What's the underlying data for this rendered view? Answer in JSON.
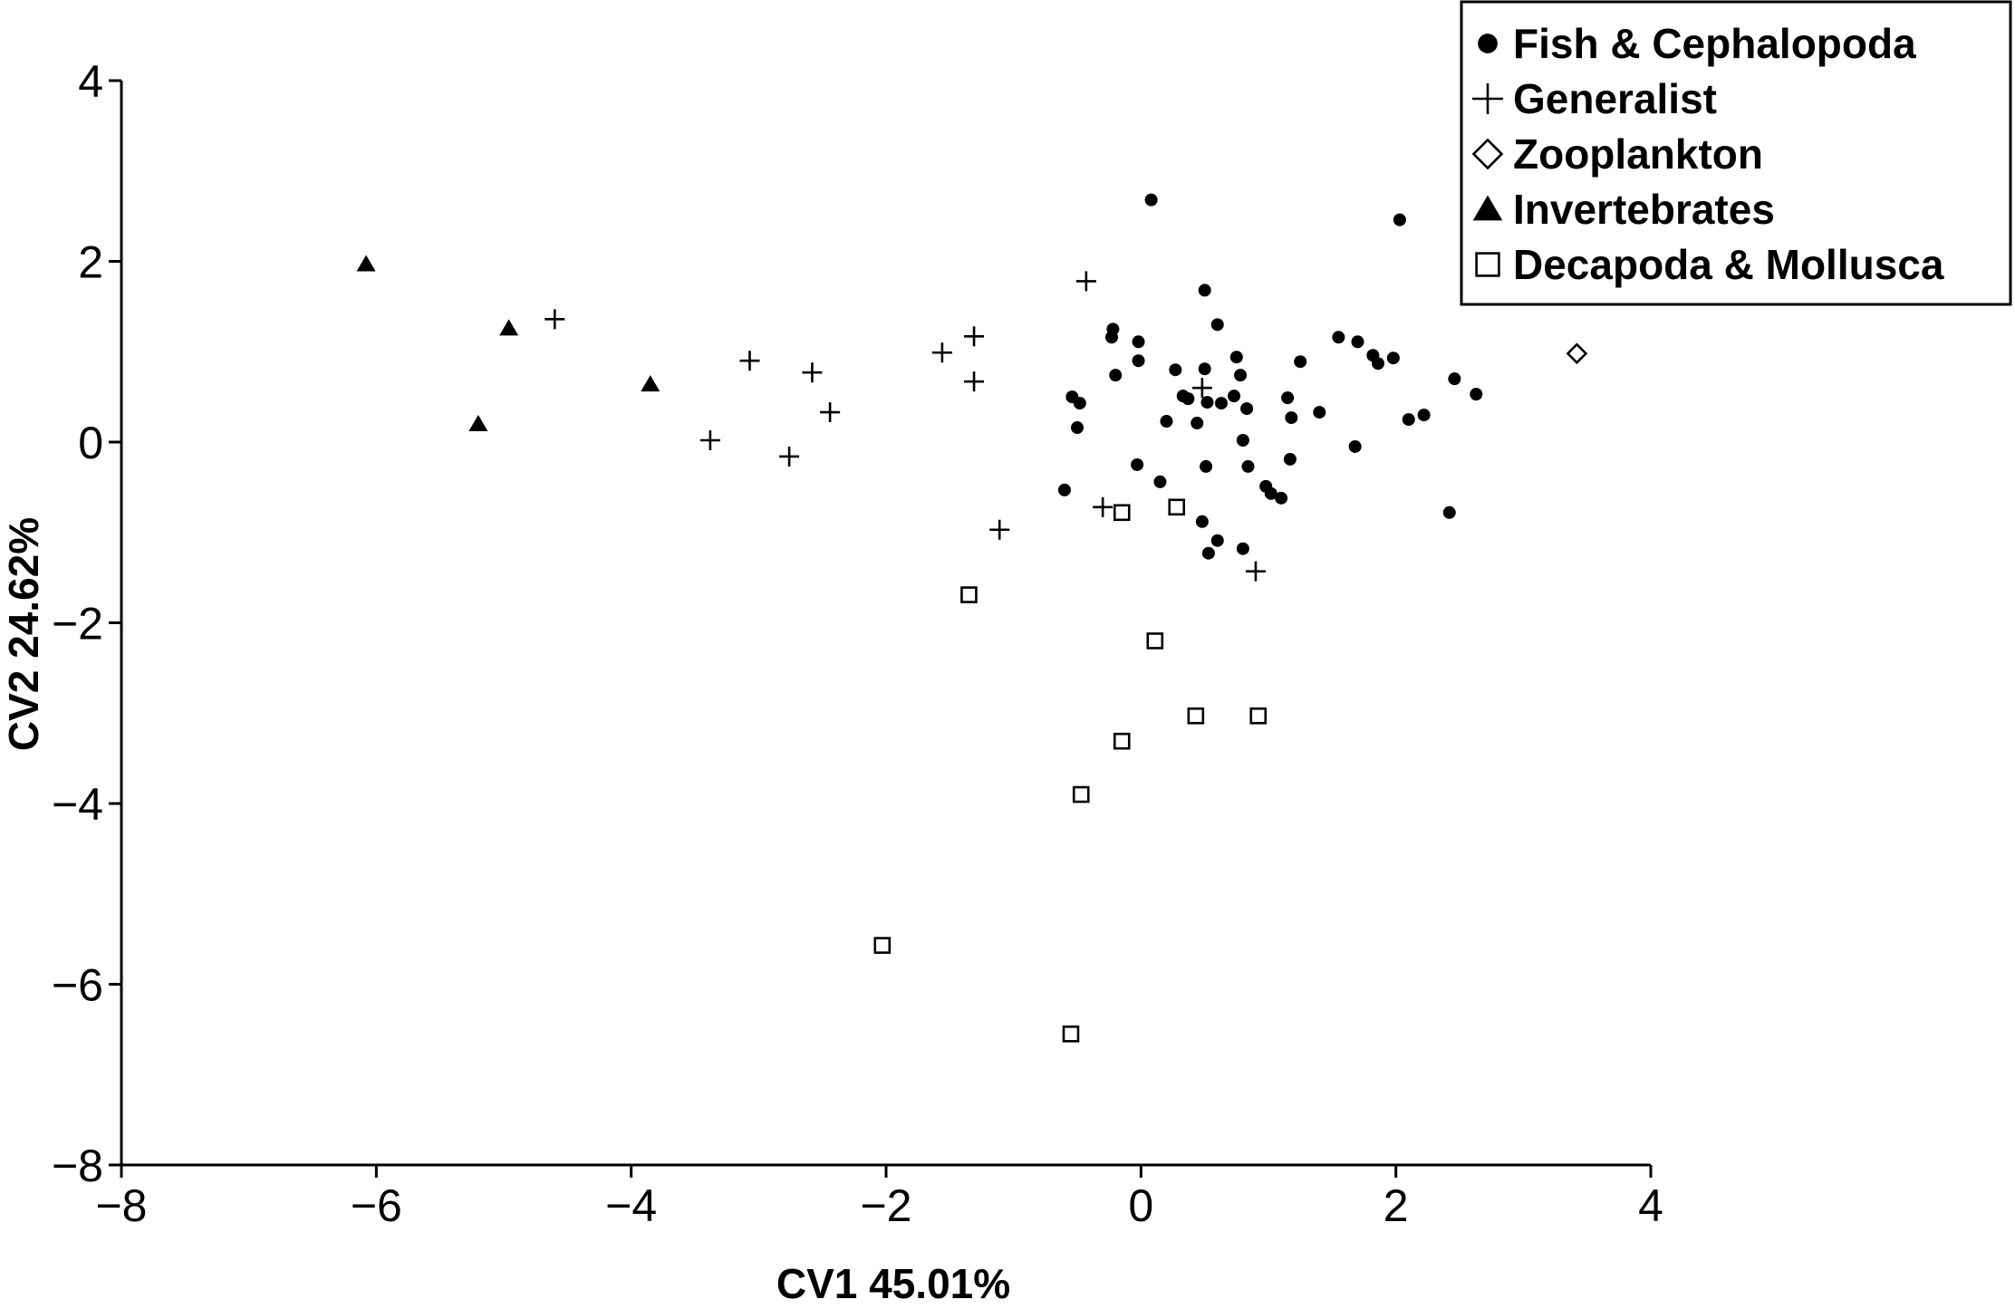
{
  "chart_data": {
    "type": "scatter",
    "title": "",
    "xlabel": "CV1 45.01%",
    "ylabel": "CV2 24.62%",
    "xlim": [
      -8,
      4
    ],
    "ylim": [
      -8,
      4
    ],
    "xticks": [
      -8,
      -6,
      -4,
      -2,
      0,
      2,
      4
    ],
    "yticks": [
      -8,
      -6,
      -4,
      -2,
      0,
      2,
      4
    ],
    "grid": false,
    "legend_position": "top-right",
    "series": [
      {
        "name": "Fish & Cephalopoda",
        "marker": "filled-circle",
        "points": [
          [
            0.08,
            2.68
          ],
          [
            2.03,
            2.46
          ],
          [
            0.5,
            1.68
          ],
          [
            0.6,
            1.3
          ],
          [
            -0.22,
            1.25
          ],
          [
            -0.23,
            1.16
          ],
          [
            -0.02,
            1.11
          ],
          [
            1.55,
            1.16
          ],
          [
            1.7,
            1.11
          ],
          [
            1.82,
            0.96
          ],
          [
            1.98,
            0.93
          ],
          [
            1.86,
            0.87
          ],
          [
            0.75,
            0.94
          ],
          [
            1.25,
            0.89
          ],
          [
            -0.02,
            0.9
          ],
          [
            0.27,
            0.8
          ],
          [
            0.5,
            0.81
          ],
          [
            0.78,
            0.74
          ],
          [
            -0.2,
            0.74
          ],
          [
            2.46,
            0.7
          ],
          [
            0.33,
            0.51
          ],
          [
            0.37,
            0.48
          ],
          [
            0.52,
            0.44
          ],
          [
            0.63,
            0.43
          ],
          [
            0.73,
            0.51
          ],
          [
            1.15,
            0.49
          ],
          [
            2.63,
            0.53
          ],
          [
            -0.54,
            0.5
          ],
          [
            -0.48,
            0.43
          ],
          [
            0.83,
            0.37
          ],
          [
            1.4,
            0.33
          ],
          [
            2.22,
            0.3
          ],
          [
            2.1,
            0.25
          ],
          [
            1.18,
            0.27
          ],
          [
            0.2,
            0.23
          ],
          [
            0.44,
            0.21
          ],
          [
            -0.5,
            0.16
          ],
          [
            -0.03,
            -0.25
          ],
          [
            0.51,
            -0.27
          ],
          [
            0.84,
            -0.27
          ],
          [
            1.17,
            -0.19
          ],
          [
            1.68,
            -0.05
          ],
          [
            0.8,
            0.02
          ],
          [
            -0.6,
            -0.53
          ],
          [
            0.15,
            -0.44
          ],
          [
            0.98,
            -0.49
          ],
          [
            1.02,
            -0.57
          ],
          [
            1.1,
            -0.62
          ],
          [
            0.48,
            -0.88
          ],
          [
            0.6,
            -1.09
          ],
          [
            0.8,
            -1.18
          ],
          [
            0.53,
            -1.23
          ],
          [
            2.42,
            -0.78
          ]
        ]
      },
      {
        "name": "Generalist",
        "marker": "plus",
        "points": [
          [
            -4.6,
            1.36
          ],
          [
            -3.07,
            0.9
          ],
          [
            -2.58,
            0.77
          ],
          [
            -2.44,
            0.33
          ],
          [
            -3.38,
            0.02
          ],
          [
            -2.76,
            -0.16
          ],
          [
            -1.56,
            0.99
          ],
          [
            -1.31,
            1.17
          ],
          [
            -1.31,
            0.67
          ],
          [
            -0.43,
            1.78
          ],
          [
            0.48,
            0.6
          ],
          [
            -0.3,
            -0.72
          ],
          [
            -1.11,
            -0.97
          ],
          [
            0.9,
            -1.43
          ]
        ]
      },
      {
        "name": "Zooplankton",
        "marker": "open-diamond",
        "points": [
          [
            3.42,
            0.98
          ]
        ]
      },
      {
        "name": "Invertebrates",
        "marker": "filled-triangle",
        "points": [
          [
            -6.08,
            1.97
          ],
          [
            -4.96,
            1.26
          ],
          [
            -5.2,
            0.2
          ],
          [
            -3.85,
            0.64
          ]
        ]
      },
      {
        "name": "Decapoda & Mollusca",
        "marker": "open-square",
        "points": [
          [
            -0.15,
            -0.78
          ],
          [
            0.28,
            -0.72
          ],
          [
            -1.35,
            -1.69
          ],
          [
            0.11,
            -2.2
          ],
          [
            0.43,
            -3.03
          ],
          [
            0.92,
            -3.03
          ],
          [
            -0.15,
            -3.31
          ],
          [
            -0.47,
            -3.9
          ],
          [
            -2.03,
            -5.57
          ],
          [
            -0.55,
            -6.55
          ]
        ]
      }
    ]
  }
}
